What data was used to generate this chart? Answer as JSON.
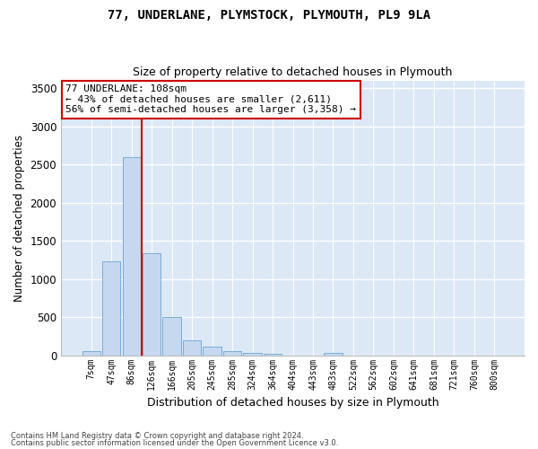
{
  "title1": "77, UNDERLANE, PLYMSTOCK, PLYMOUTH, PL9 9LA",
  "title2": "Size of property relative to detached houses in Plymouth",
  "xlabel": "Distribution of detached houses by size in Plymouth",
  "ylabel": "Number of detached properties",
  "bin_labels": [
    "7sqm",
    "47sqm",
    "86sqm",
    "126sqm",
    "166sqm",
    "205sqm",
    "245sqm",
    "285sqm",
    "324sqm",
    "364sqm",
    "404sqm",
    "443sqm",
    "483sqm",
    "522sqm",
    "562sqm",
    "602sqm",
    "641sqm",
    "681sqm",
    "721sqm",
    "760sqm",
    "800sqm"
  ],
  "bar_values": [
    50,
    1230,
    2590,
    1340,
    500,
    190,
    110,
    50,
    30,
    20,
    0,
    0,
    30,
    0,
    0,
    0,
    0,
    0,
    0,
    0,
    0
  ],
  "bar_color": "#c5d8f0",
  "bar_edge_color": "#7aadd4",
  "vline_color": "#cc0000",
  "annotation_text": "77 UNDERLANE: 108sqm\n← 43% of detached houses are smaller (2,611)\n56% of semi-detached houses are larger (3,358) →",
  "annotation_box_color": "#ffffff",
  "annotation_box_edge": "#cc0000",
  "ylim": [
    0,
    3600
  ],
  "yticks": [
    0,
    500,
    1000,
    1500,
    2000,
    2500,
    3000,
    3500
  ],
  "background_color": "#dce8f5",
  "grid_color": "#ffffff",
  "footer1": "Contains HM Land Registry data © Crown copyright and database right 2024.",
  "footer2": "Contains public sector information licensed under the Open Government Licence v3.0."
}
